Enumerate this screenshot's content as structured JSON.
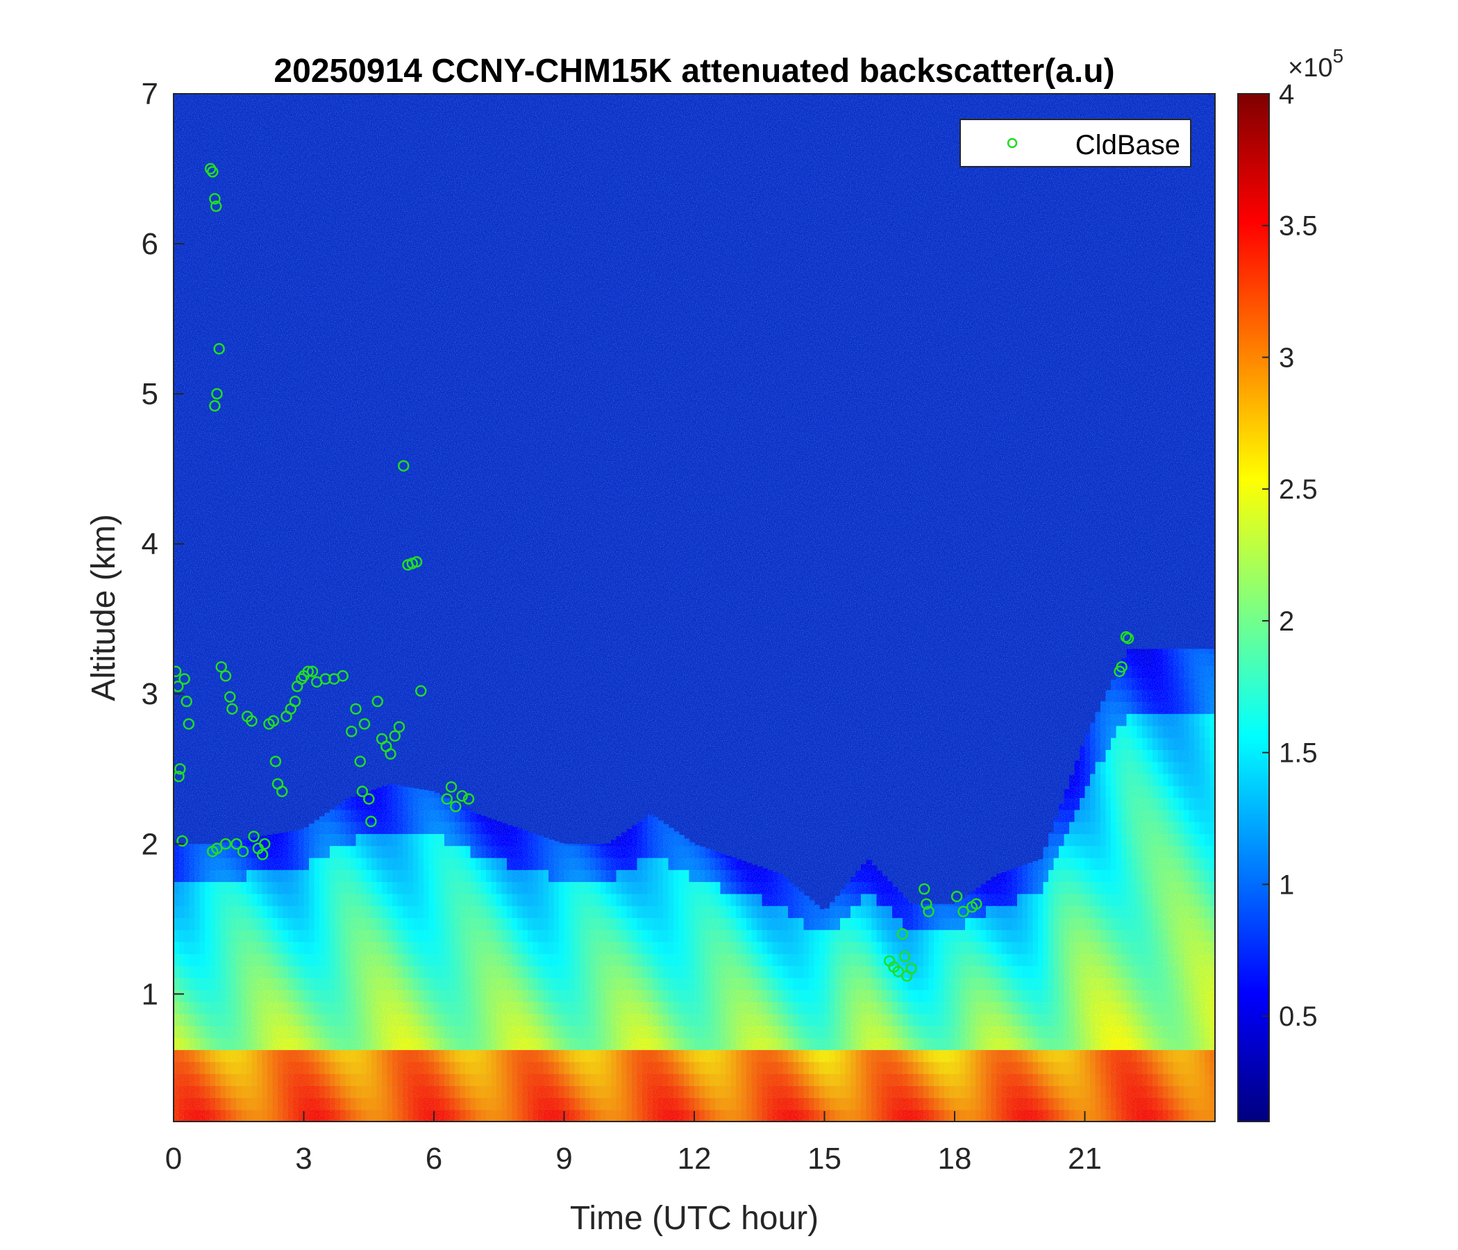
{
  "chart_data": {
    "type": "heatmap",
    "title": "20250914 CCNY-CHM15K attenuated backscatter(a.u)",
    "xlabel": "Time (UTC hour)",
    "ylabel": "Altitude (km)",
    "xlim": [
      0,
      24
    ],
    "ylim": [
      0.15,
      7
    ],
    "x_ticks": [
      0,
      3,
      6,
      9,
      12,
      15,
      18,
      21
    ],
    "x_tick_labels": [
      "0",
      "3",
      "6",
      "9",
      "12",
      "15",
      "18",
      "21"
    ],
    "y_ticks": [
      1,
      2,
      3,
      4,
      5,
      6,
      7
    ],
    "y_tick_labels": [
      "1",
      "2",
      "3",
      "4",
      "5",
      "6",
      "7"
    ],
    "colormap": "jet",
    "colorbar": {
      "range": [
        0.1,
        4
      ],
      "ticks": [
        0.5,
        1,
        1.5,
        2,
        2.5,
        3,
        3.5,
        4
      ],
      "tick_labels": [
        "0.5",
        "1",
        "1.5",
        "2",
        "2.5",
        "3",
        "3.5",
        "4"
      ],
      "exponent_base": "×10",
      "exponent_power": "5"
    },
    "legend": {
      "placement": "top-right",
      "entries": [
        {
          "name": "CldBase",
          "marker": "circle",
          "color": "#22dd22"
        }
      ]
    },
    "boundary_layer_top_km": [
      [
        0,
        2.0
      ],
      [
        1,
        2.0
      ],
      [
        2,
        2.05
      ],
      [
        3,
        2.1
      ],
      [
        4,
        2.3
      ],
      [
        5,
        2.4
      ],
      [
        6,
        2.35
      ],
      [
        7,
        2.2
      ],
      [
        8,
        2.1
      ],
      [
        9,
        2.0
      ],
      [
        10,
        2.0
      ],
      [
        11,
        2.2
      ],
      [
        12,
        2.0
      ],
      [
        13,
        1.9
      ],
      [
        14,
        1.8
      ],
      [
        15,
        1.55
      ],
      [
        16,
        1.9
      ],
      [
        17,
        1.6
      ],
      [
        18,
        1.6
      ],
      [
        19,
        1.8
      ],
      [
        20,
        1.9
      ],
      [
        21,
        2.7
      ],
      [
        22,
        3.3
      ],
      [
        23,
        3.3
      ],
      [
        24,
        3.3
      ]
    ],
    "cloud_base_points": [
      {
        "x": 0.05,
        "y": 3.15
      },
      {
        "x": 0.1,
        "y": 3.05
      },
      {
        "x": 0.12,
        "y": 2.45
      },
      {
        "x": 0.15,
        "y": 2.5
      },
      {
        "x": 0.2,
        "y": 2.02
      },
      {
        "x": 0.25,
        "y": 3.1
      },
      {
        "x": 0.3,
        "y": 2.95
      },
      {
        "x": 0.35,
        "y": 2.8
      },
      {
        "x": 0.85,
        "y": 6.5
      },
      {
        "x": 0.9,
        "y": 6.48
      },
      {
        "x": 0.95,
        "y": 6.3
      },
      {
        "x": 0.98,
        "y": 6.25
      },
      {
        "x": 0.9,
        "y": 1.95
      },
      {
        "x": 1.0,
        "y": 1.97
      },
      {
        "x": 1.0,
        "y": 5.0
      },
      {
        "x": 0.95,
        "y": 4.92
      },
      {
        "x": 1.05,
        "y": 5.3
      },
      {
        "x": 1.1,
        "y": 3.18
      },
      {
        "x": 1.2,
        "y": 3.12
      },
      {
        "x": 1.3,
        "y": 2.98
      },
      {
        "x": 1.35,
        "y": 2.9
      },
      {
        "x": 1.2,
        "y": 2.0
      },
      {
        "x": 1.45,
        "y": 2.0
      },
      {
        "x": 1.6,
        "y": 1.95
      },
      {
        "x": 1.7,
        "y": 2.85
      },
      {
        "x": 1.8,
        "y": 2.82
      },
      {
        "x": 1.85,
        "y": 2.05
      },
      {
        "x": 1.95,
        "y": 1.97
      },
      {
        "x": 2.05,
        "y": 1.93
      },
      {
        "x": 2.1,
        "y": 2.0
      },
      {
        "x": 2.2,
        "y": 2.8
      },
      {
        "x": 2.3,
        "y": 2.82
      },
      {
        "x": 2.35,
        "y": 2.55
      },
      {
        "x": 2.4,
        "y": 2.4
      },
      {
        "x": 2.5,
        "y": 2.35
      },
      {
        "x": 2.6,
        "y": 2.85
      },
      {
        "x": 2.7,
        "y": 2.9
      },
      {
        "x": 2.8,
        "y": 2.95
      },
      {
        "x": 2.85,
        "y": 3.05
      },
      {
        "x": 2.95,
        "y": 3.1
      },
      {
        "x": 3.0,
        "y": 3.12
      },
      {
        "x": 3.1,
        "y": 3.15
      },
      {
        "x": 3.2,
        "y": 3.15
      },
      {
        "x": 3.3,
        "y": 3.08
      },
      {
        "x": 3.5,
        "y": 3.1
      },
      {
        "x": 3.7,
        "y": 3.1
      },
      {
        "x": 3.9,
        "y": 3.12
      },
      {
        "x": 4.1,
        "y": 2.75
      },
      {
        "x": 4.2,
        "y": 2.9
      },
      {
        "x": 4.3,
        "y": 2.55
      },
      {
        "x": 4.35,
        "y": 2.35
      },
      {
        "x": 4.4,
        "y": 2.8
      },
      {
        "x": 4.5,
        "y": 2.3
      },
      {
        "x": 4.55,
        "y": 2.15
      },
      {
        "x": 4.7,
        "y": 2.95
      },
      {
        "x": 4.8,
        "y": 2.7
      },
      {
        "x": 4.9,
        "y": 2.65
      },
      {
        "x": 5.0,
        "y": 2.6
      },
      {
        "x": 5.1,
        "y": 2.72
      },
      {
        "x": 5.2,
        "y": 2.78
      },
      {
        "x": 5.3,
        "y": 4.52
      },
      {
        "x": 5.4,
        "y": 3.86
      },
      {
        "x": 5.5,
        "y": 3.87
      },
      {
        "x": 5.6,
        "y": 3.88
      },
      {
        "x": 5.7,
        "y": 3.02
      },
      {
        "x": 6.3,
        "y": 2.3
      },
      {
        "x": 6.4,
        "y": 2.38
      },
      {
        "x": 6.5,
        "y": 2.25
      },
      {
        "x": 6.65,
        "y": 2.32
      },
      {
        "x": 6.8,
        "y": 2.3
      },
      {
        "x": 16.5,
        "y": 1.22
      },
      {
        "x": 16.6,
        "y": 1.18
      },
      {
        "x": 16.7,
        "y": 1.15
      },
      {
        "x": 16.8,
        "y": 1.4
      },
      {
        "x": 16.85,
        "y": 1.25
      },
      {
        "x": 16.9,
        "y": 1.12
      },
      {
        "x": 17.0,
        "y": 1.17
      },
      {
        "x": 17.3,
        "y": 1.7
      },
      {
        "x": 17.35,
        "y": 1.6
      },
      {
        "x": 17.4,
        "y": 1.55
      },
      {
        "x": 18.05,
        "y": 1.65
      },
      {
        "x": 18.2,
        "y": 1.55
      },
      {
        "x": 18.4,
        "y": 1.58
      },
      {
        "x": 18.5,
        "y": 1.6
      },
      {
        "x": 21.8,
        "y": 3.15
      },
      {
        "x": 21.85,
        "y": 3.18
      },
      {
        "x": 21.95,
        "y": 3.38
      },
      {
        "x": 22.0,
        "y": 3.37
      }
    ]
  }
}
